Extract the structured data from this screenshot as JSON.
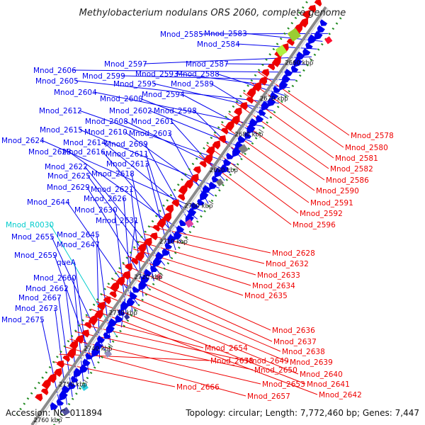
{
  "title": "Methylobacterium nodulans ORS 2060, complete genome",
  "footer": {
    "accession": "Accession: NC_011894",
    "summary": "Topology: circular; Length: 7,772,460 bp; Genes: 7,447"
  },
  "colors": {
    "forward": "#0000ee",
    "reverse": "#ee0000",
    "rna": "#00cccc",
    "backbone": "#888888",
    "ticks": "#228b22"
  },
  "kbp_ticks": [
    "2660 kbp",
    "2670 kbp",
    "2680 kbp",
    "2690 kbp",
    "2700 kbp",
    "2710 kbp",
    "2720 kbp",
    "2730 kbp",
    "2740 kbp",
    "2750 kbp",
    "2760 kbp"
  ],
  "left_genes": [
    "Mnod_2585",
    "Mnod_2583",
    "Mnod_2584",
    "Mnod_2597",
    "Mnod_2587",
    "Mnod_2606",
    "Mnod_2599",
    "Mnod_2593",
    "Mnod_2588",
    "Mnod_2605",
    "Mnod_2595",
    "Mnod_2589",
    "Mnod_2604",
    "Mnod_2594",
    "Mnod_2600",
    "Mnod_2602",
    "Mnod_2598",
    "Mnod_2612",
    "Mnod_2608",
    "Mnod_2601",
    "Mnod_2615",
    "Mnod_2610",
    "Mnod_2603",
    "Mnod_2624",
    "Mnod_2614",
    "Mnod_2609",
    "Mnod_2623",
    "Mnod_2616",
    "Mnod_2611",
    "Mnod_2613",
    "Mnod_2622",
    "Mnod_2625",
    "Mnod_2618",
    "Mnod_2629",
    "Mnod_2621",
    "Mnod_2644",
    "Mnod_2626",
    "Mnod_2630",
    "Mnod_2631",
    "Mnod_R0030",
    "Mnod_2645",
    "Mnod_2655",
    "Mnod_2647",
    "Mnod_2659",
    "queA",
    "Mnod_2660",
    "Mnod_2662",
    "Mnod_2667",
    "Mnod_2673",
    "Mnod_2675"
  ],
  "right_genes_upper": [
    "Mnod_2578",
    "Mnod_2580",
    "Mnod_2581",
    "Mnod_2582",
    "Mnod_2586",
    "Mnod_2590",
    "Mnod_2591",
    "Mnod_2592",
    "Mnod_2596"
  ],
  "right_genes_lower": [
    "Mnod_2628",
    "Mnod_2632",
    "Mnod_2633",
    "Mnod_2634",
    "Mnod_2635",
    "Mnod_2636",
    "Mnod_2637",
    "Mnod_2638",
    "Mnod_2639",
    "Mnod_2640",
    "Mnod_2641",
    "Mnod_2642",
    "Mnod_2654",
    "Mnod_2649",
    "Mnod_2650",
    "Mnod_2653",
    "Mnod_2657",
    "Mnod_2658",
    "Mnod_2666"
  ]
}
